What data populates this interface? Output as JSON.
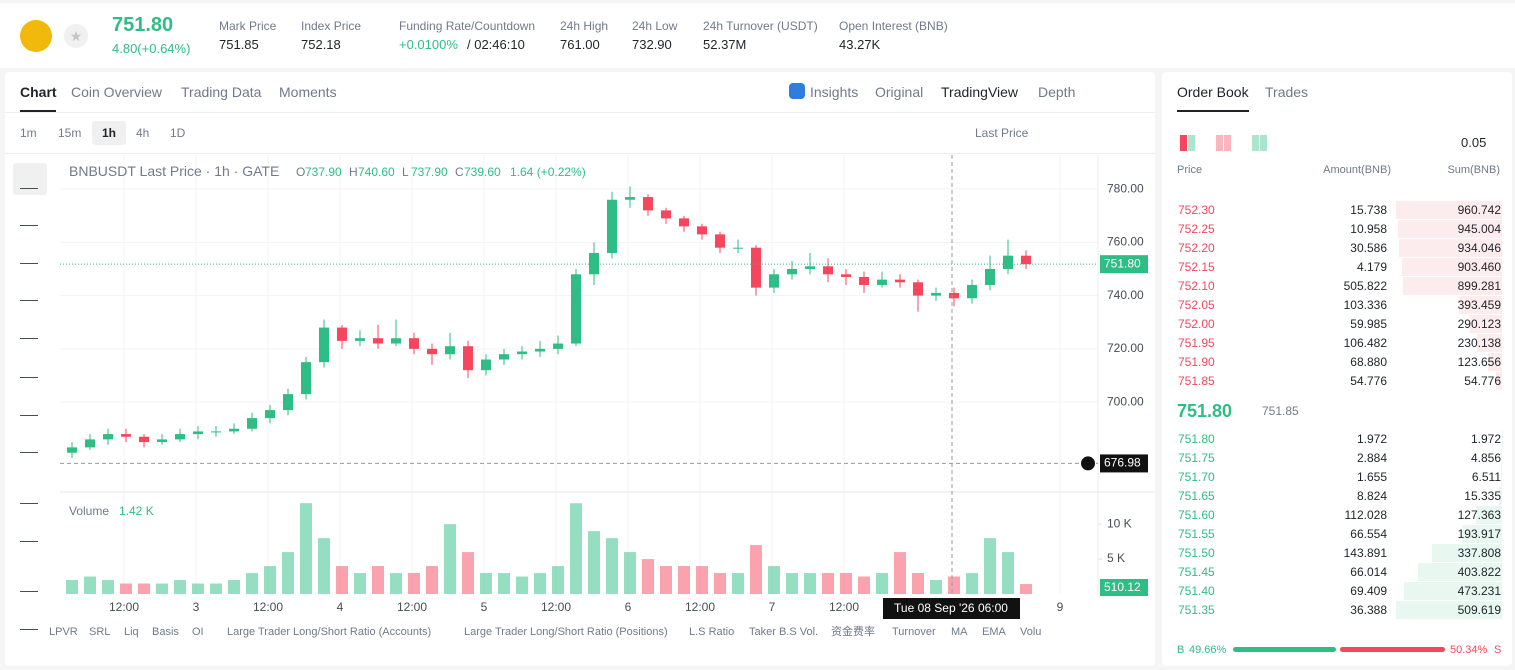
{
  "header": {
    "price": "751.80",
    "change": "4.80(+0.64%)",
    "stats": [
      {
        "label": "Mark Price",
        "value": "751.85"
      },
      {
        "label": "Index Price",
        "value": "752.18"
      },
      {
        "label": "Funding Rate/Countdown",
        "value": "+0.0100%",
        "extra": "/ 02:46:10"
      },
      {
        "label": "24h High",
        "value": "761.00"
      },
      {
        "label": "24h Low",
        "value": "732.90"
      },
      {
        "label": "24h Turnover (USDT)",
        "value": "52.37M"
      },
      {
        "label": "Open Interest (BNB)",
        "value": "43.27K"
      }
    ]
  },
  "tabs": [
    "Chart",
    "Coin Overview",
    "Trading Data",
    "Moments"
  ],
  "views": [
    "Insights",
    "Original",
    "TradingView",
    "Depth"
  ],
  "intervals": [
    "1m",
    "15m",
    "1h",
    "4h",
    "1D"
  ],
  "price_type": "Last Price",
  "chart": {
    "type": "candlestick",
    "legend": "BNBUSDT Last Price · 1h · GATE",
    "ohlc": [
      "O",
      "737.90",
      "H",
      "740.60",
      "L",
      "737.90",
      "C",
      "739.60"
    ],
    "ohlc_change": "1.64 (+0.22%)",
    "ylim": [
      667,
      792.8
    ],
    "yticks": [
      {
        "value": 780,
        "label": "780.00"
      },
      {
        "value": 760,
        "label": "760.00"
      },
      {
        "value": 740,
        "label": "740.00"
      },
      {
        "value": 720,
        "label": "720.00"
      },
      {
        "value": 700,
        "label": "700.00"
      }
    ],
    "last_price": {
      "value": 751.8,
      "label": "751.80"
    },
    "crosshair_price": {
      "value": 676.98,
      "label": "676.98"
    },
    "crosshair_time": "Tue 08 Sep '26   06:00",
    "xlabels": [
      "12:00",
      "3",
      "12:00",
      "4",
      "12:00",
      "5",
      "12:00",
      "6",
      "12:00",
      "7",
      "12:00",
      "9"
    ],
    "candles": [
      [
        681,
        685,
        679,
        683
      ],
      [
        683,
        688,
        682,
        686
      ],
      [
        686,
        690,
        684,
        688
      ],
      [
        688,
        690,
        685,
        687
      ],
      [
        687,
        688,
        683,
        685
      ],
      [
        685,
        688,
        684,
        686
      ],
      [
        686,
        690,
        685,
        688
      ],
      [
        688,
        691,
        686,
        689
      ],
      [
        689,
        691,
        687,
        689
      ],
      [
        689,
        692,
        688,
        690
      ],
      [
        690,
        696,
        689,
        694
      ],
      [
        694,
        699,
        692,
        697
      ],
      [
        697,
        705,
        695,
        703
      ],
      [
        703,
        717,
        701,
        715
      ],
      [
        715,
        731,
        713,
        728
      ],
      [
        728,
        729,
        720,
        723
      ],
      [
        723,
        727,
        721,
        724
      ],
      [
        724,
        729,
        720,
        722
      ],
      [
        722,
        731,
        721,
        724
      ],
      [
        724,
        726,
        718,
        720
      ],
      [
        720,
        722,
        714,
        718
      ],
      [
        718,
        726,
        716,
        721
      ],
      [
        721,
        723,
        709,
        712
      ],
      [
        712,
        718,
        710,
        716
      ],
      [
        716,
        720,
        714,
        718
      ],
      [
        718,
        721,
        716,
        719
      ],
      [
        719,
        723,
        717,
        720
      ],
      [
        720,
        725,
        718,
        722
      ],
      [
        722,
        750,
        721,
        748
      ],
      [
        748,
        760,
        744,
        756
      ],
      [
        756,
        779,
        754,
        776
      ],
      [
        776,
        781,
        773,
        777
      ],
      [
        777,
        778,
        770,
        772
      ],
      [
        772,
        773,
        767,
        769
      ],
      [
        769,
        770,
        764,
        766
      ],
      [
        766,
        767,
        761,
        763
      ],
      [
        763,
        764,
        756,
        758
      ],
      [
        758,
        761,
        756,
        758
      ],
      [
        758,
        759,
        740,
        743
      ],
      [
        743,
        750,
        741,
        748
      ],
      [
        748,
        753,
        746,
        750
      ],
      [
        750,
        756,
        748,
        751
      ],
      [
        751,
        754,
        745,
        748
      ],
      [
        748,
        750,
        744,
        747
      ],
      [
        747,
        749,
        741,
        744
      ],
      [
        744,
        749,
        743,
        746
      ],
      [
        746,
        748,
        743,
        745
      ],
      [
        745,
        746,
        734,
        740
      ],
      [
        740,
        743,
        738,
        741
      ],
      [
        741,
        743,
        736,
        739
      ],
      [
        739,
        746,
        737,
        744
      ],
      [
        744,
        755,
        742,
        750
      ],
      [
        750,
        761,
        748,
        755
      ],
      [
        755,
        757,
        750,
        751.8
      ]
    ],
    "volume_label": "Volume",
    "volume_value": "1.42 K",
    "vlim": [
      0,
      14.6
    ],
    "vticks": [
      {
        "value": 10,
        "label": "10 K"
      },
      {
        "value": 5,
        "label": "5 K"
      }
    ],
    "volume_tag": "510.12",
    "volumes": [
      2,
      2.5,
      2,
      1.5,
      1.5,
      1.5,
      2,
      1.5,
      1.5,
      2,
      3,
      4,
      6,
      13,
      8,
      4,
      3,
      4,
      3,
      3,
      4,
      10,
      6,
      3,
      3,
      2.5,
      3,
      4,
      13,
      9,
      8,
      6,
      5,
      4,
      4,
      4,
      3,
      3,
      7,
      4,
      3,
      3,
      3,
      3,
      2.5,
      3,
      6,
      3,
      2,
      2.5,
      3,
      8,
      6,
      1.42
    ]
  },
  "indicators": [
    "LPVR",
    "SRL",
    "Liq",
    "Basis",
    "OI",
    "Large Trader Long/Short Ratio (Accounts)",
    "Large Trader Long/Short Ratio (Positions)",
    "L.S Ratio",
    "Taker B.S Vol.",
    "资金费率",
    "Turnover",
    "MA",
    "EMA",
    "Volu"
  ],
  "order_book": {
    "tabs": [
      "Order Book",
      "Trades"
    ],
    "precision": "0.05",
    "columns": [
      "Price",
      "Amount(BNB)",
      "Sum(BNB)"
    ],
    "asks": [
      [
        "752.30",
        "15.738",
        960.742
      ],
      [
        "752.25",
        "10.958",
        945.004
      ],
      [
        "752.20",
        "30.586",
        934.046
      ],
      [
        "752.15",
        "4.179",
        903.46
      ],
      [
        "752.10",
        "505.822",
        899.281
      ],
      [
        "752.05",
        "103.336",
        393.459
      ],
      [
        "752.00",
        "59.985",
        290.123
      ],
      [
        "751.95",
        "106.482",
        230.138
      ],
      [
        "751.90",
        "68.880",
        123.656
      ],
      [
        "751.85",
        "54.776",
        54.776
      ]
    ],
    "ask_sum_labels": [
      "960.742",
      "945.004",
      "934.046",
      "903.460",
      "899.281",
      "393.459",
      "290.123",
      "230.138",
      "123.656",
      "54.776"
    ],
    "mid_price": "751.80",
    "mark_price": "751.85",
    "bids": [
      [
        "751.80",
        "1.972",
        1.972
      ],
      [
        "751.75",
        "2.884",
        4.856
      ],
      [
        "751.70",
        "1.655",
        6.511
      ],
      [
        "751.65",
        "8.824",
        15.335
      ],
      [
        "751.60",
        "112.028",
        127.363
      ],
      [
        "751.55",
        "66.554",
        193.917
      ],
      [
        "751.50",
        "143.891",
        337.808
      ],
      [
        "751.45",
        "66.014",
        403.822
      ],
      [
        "751.40",
        "69.409",
        473.231
      ],
      [
        "751.35",
        "36.388",
        509.619
      ]
    ],
    "bid_sum_labels": [
      "1.972",
      "4.856",
      "6.511",
      "15.335",
      "127.363",
      "193.917",
      "337.808",
      "403.822",
      "473.231",
      "509.619"
    ],
    "buy_letter": "B",
    "buy_ratio": 49.66,
    "buy_label": "49.66%",
    "sell_ratio": 50.34,
    "sell_label": "50.34%",
    "sell_letter": "S"
  }
}
